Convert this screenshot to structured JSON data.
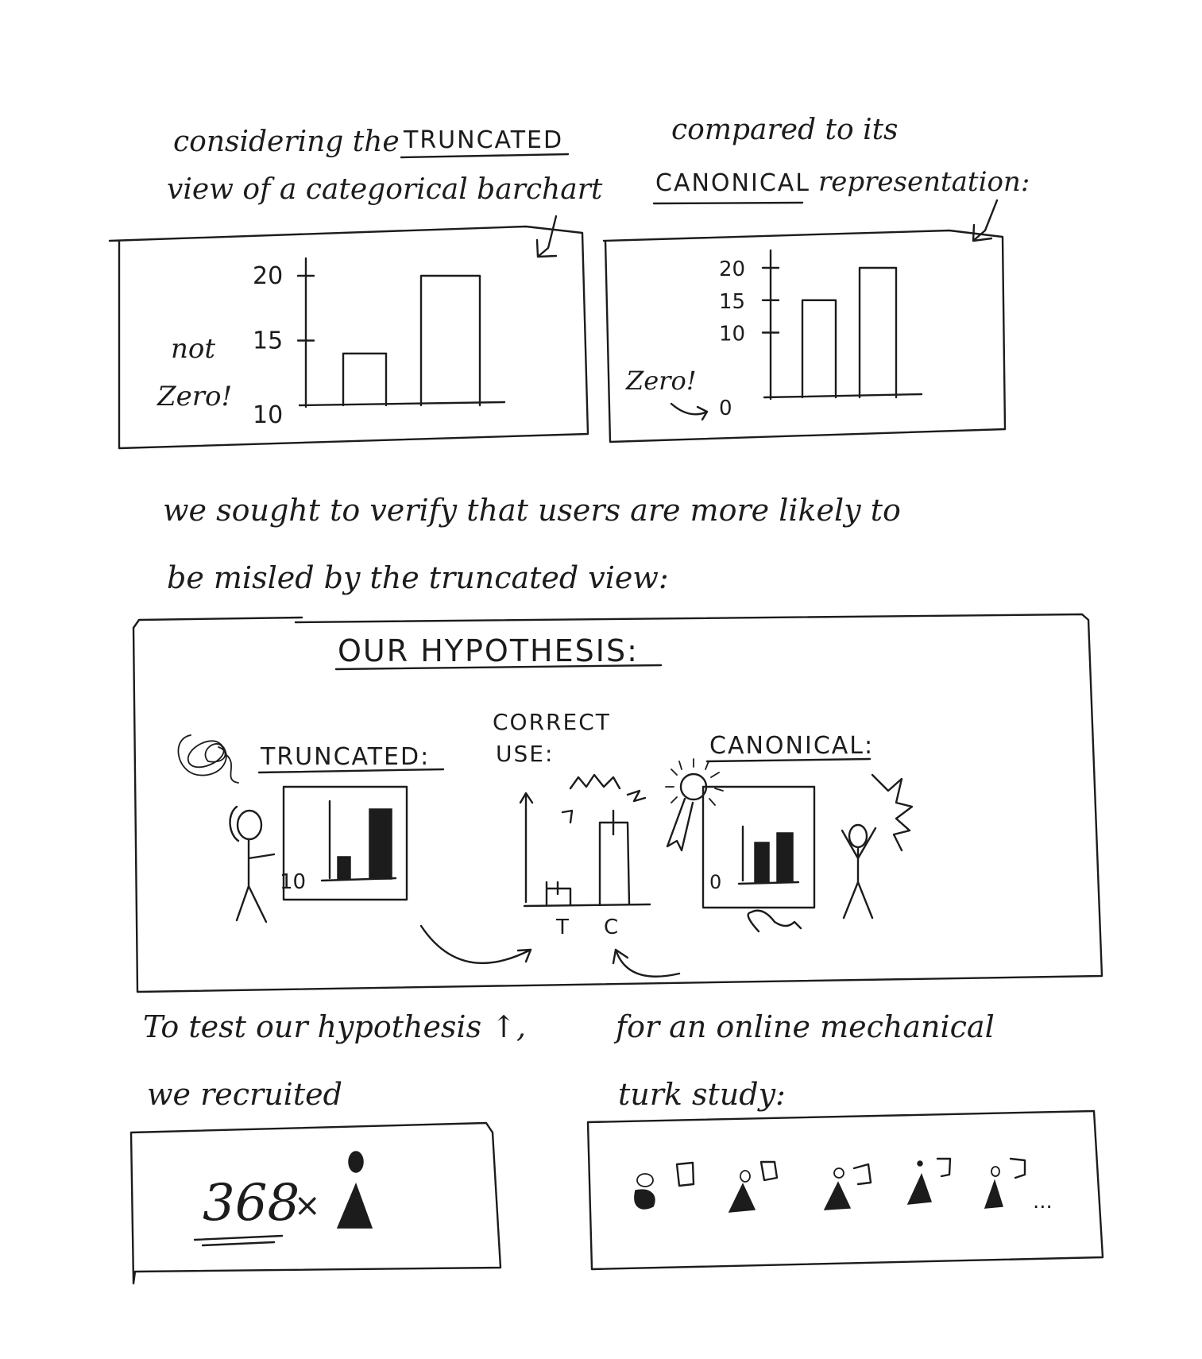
{
  "intro": {
    "left_line1": "considering the",
    "left_keyword": "TRUNCATED",
    "left_line2": "view of a categorical barchart",
    "right_line1": "compared to its",
    "right_keyword": "CANONICAL",
    "right_line2": "representation:"
  },
  "truncated_chart_panel": {
    "note_line1": "not",
    "note_line2": "Zero!"
  },
  "canonical_chart_panel": {
    "note": "Zero!"
  },
  "chart_data": [
    {
      "type": "bar",
      "categories": [
        "",
        ""
      ],
      "values": [
        14,
        20
      ],
      "yticks": [
        "10",
        "15",
        "20"
      ],
      "ylim": [
        10,
        20
      ]
    },
    {
      "type": "bar",
      "categories": [
        "",
        ""
      ],
      "values": [
        15,
        20
      ],
      "yticks": [
        "0",
        "10",
        "15",
        "20"
      ],
      "ylim": [
        0,
        20
      ]
    }
  ],
  "goal": {
    "line1": "we sought to verify that users are more likely to",
    "line2": "be misled by the truncated view:"
  },
  "hypothesis": {
    "title": "OUR HYPOTHESIS:",
    "truncated_label": "TRUNCATED:",
    "correct_use_line1": "CORRECT",
    "correct_use_line2": "USE:",
    "canonical_label": "CANONICAL:",
    "truncated_axis_tick": "10",
    "canonical_axis_tick": "0",
    "category_t": "T",
    "category_c": "C"
  },
  "recruit": {
    "left_line1": "To test our hypothesis ↑,",
    "left_line2": "we recruited",
    "count": "368",
    "times": "×",
    "right_line1": "for an online mechanical",
    "right_line2": "turk study:",
    "ellipsis": "..."
  },
  "icons": [
    "confused-scribble-icon",
    "person-icon",
    "award-ribbon-icon",
    "sparkle-icon",
    "computer-user-icon"
  ]
}
